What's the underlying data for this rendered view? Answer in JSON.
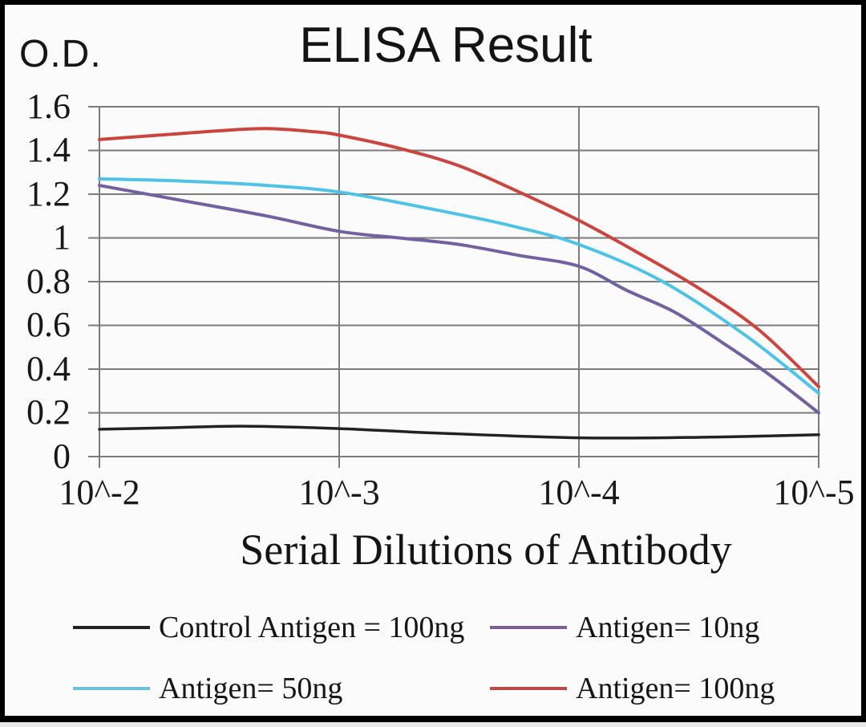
{
  "figure": {
    "background": "#fbfbfb",
    "frame_color": "#000000",
    "grid_color": "#7b7b7b"
  },
  "chart_data": {
    "type": "line",
    "title": "ELISA Result",
    "ylabel": "O.D.",
    "xlabel": "Serial Dilutions of Antibody",
    "x_tick_labels": [
      "10^-2",
      "10^-3",
      "10^-4",
      "10^-5"
    ],
    "y_tick_labels": [
      "1.6",
      "1.4",
      "1.2",
      "1",
      "0.8",
      "0.6",
      "0.4",
      "0.2",
      "0"
    ],
    "ylim": [
      0,
      1.6
    ],
    "x_axis_note": "serial dilution, log scale from 10^-2 (left) to 10^-5 (right); x given in decades from 10^-2",
    "grid": true,
    "legend_position": "bottom",
    "series": [
      {
        "name": "Control Antigen = 100ng",
        "color": "#222222",
        "stroke_width": 3.5,
        "x": [
          0,
          0.3,
          0.6,
          1.0,
          1.4,
          2.0,
          2.5,
          3.0
        ],
        "values": [
          0.125,
          0.132,
          0.139,
          0.128,
          0.108,
          0.086,
          0.088,
          0.1
        ]
      },
      {
        "name": "Antigen= 10ng",
        "color": "#72619e",
        "stroke_width": 4,
        "x": [
          0,
          0.35,
          0.7,
          1.0,
          1.25,
          1.5,
          1.75,
          2.0,
          2.2,
          2.4,
          2.6,
          2.8,
          3.0
        ],
        "values": [
          1.24,
          1.17,
          1.1,
          1.03,
          1.0,
          0.97,
          0.92,
          0.87,
          0.76,
          0.66,
          0.52,
          0.37,
          0.2
        ]
      },
      {
        "name": "Antigen= 50ng",
        "color": "#4ec3e6",
        "stroke_width": 4,
        "x": [
          0,
          0.35,
          0.7,
          1.0,
          1.35,
          1.7,
          2.0,
          2.35,
          2.7,
          3.0
        ],
        "values": [
          1.27,
          1.26,
          1.24,
          1.21,
          1.14,
          1.06,
          0.97,
          0.8,
          0.55,
          0.29
        ]
      },
      {
        "name": "Antigen= 100ng",
        "color": "#c9453e",
        "stroke_width": 4,
        "x": [
          0,
          0.25,
          0.5,
          0.7,
          0.9,
          1.0,
          1.25,
          1.5,
          1.75,
          2.0,
          2.25,
          2.5,
          2.75,
          3.0
        ],
        "values": [
          1.45,
          1.47,
          1.49,
          1.5,
          1.485,
          1.47,
          1.41,
          1.33,
          1.21,
          1.08,
          0.93,
          0.77,
          0.58,
          0.32
        ]
      }
    ]
  },
  "legend": {
    "items": [
      {
        "label": "Control Antigen = 100ng",
        "color": "#222222"
      },
      {
        "label": "Antigen= 10ng",
        "color": "#7a6096"
      },
      {
        "label": "Antigen= 50ng",
        "color": "#6fbedc"
      },
      {
        "label": "Antigen= 100ng",
        "color": "#bb4a44"
      }
    ]
  }
}
